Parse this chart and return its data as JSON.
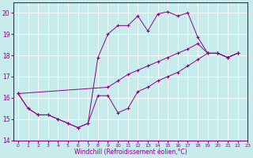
{
  "xlabel": "Windchill (Refroidissement éolien,°C)",
  "background_color": "#c8ecec",
  "line_color": "#8b008b",
  "xlim": [
    -0.5,
    23
  ],
  "ylim": [
    14,
    20.5
  ],
  "yticks": [
    14,
    15,
    16,
    17,
    18,
    19,
    20
  ],
  "xticks": [
    0,
    1,
    2,
    3,
    4,
    5,
    6,
    7,
    8,
    9,
    10,
    11,
    12,
    13,
    14,
    15,
    16,
    17,
    18,
    19,
    20,
    21,
    22,
    23
  ],
  "series1": [
    [
      0,
      16.2
    ],
    [
      1,
      15.5
    ],
    [
      2,
      15.2
    ],
    [
      3,
      15.2
    ],
    [
      4,
      15.0
    ],
    [
      5,
      14.8
    ],
    [
      6,
      14.6
    ],
    [
      7,
      14.8
    ],
    [
      8,
      16.1
    ],
    [
      9,
      16.1
    ],
    [
      10,
      15.3
    ],
    [
      11,
      15.5
    ],
    [
      12,
      16.3
    ],
    [
      13,
      16.5
    ],
    [
      14,
      16.8
    ],
    [
      15,
      17.0
    ],
    [
      16,
      17.2
    ],
    [
      17,
      17.5
    ],
    [
      18,
      17.8
    ],
    [
      19,
      18.1
    ],
    [
      20,
      18.1
    ],
    [
      21,
      17.9
    ],
    [
      22,
      18.1
    ]
  ],
  "series2": [
    [
      0,
      16.2
    ],
    [
      1,
      15.5
    ],
    [
      2,
      15.2
    ],
    [
      3,
      15.2
    ],
    [
      4,
      15.0
    ],
    [
      5,
      14.8
    ],
    [
      6,
      14.6
    ],
    [
      7,
      14.8
    ],
    [
      8,
      17.9
    ],
    [
      9,
      19.0
    ],
    [
      10,
      19.4
    ],
    [
      11,
      19.4
    ],
    [
      12,
      19.85
    ],
    [
      13,
      19.15
    ],
    [
      14,
      19.95
    ],
    [
      15,
      20.05
    ],
    [
      16,
      19.85
    ],
    [
      17,
      20.0
    ],
    [
      18,
      18.85
    ],
    [
      19,
      18.1
    ],
    [
      20,
      18.1
    ],
    [
      21,
      17.9
    ],
    [
      22,
      18.1
    ]
  ],
  "series3": [
    [
      0,
      16.2
    ],
    [
      9,
      16.5
    ],
    [
      10,
      16.8
    ],
    [
      11,
      17.1
    ],
    [
      12,
      17.3
    ],
    [
      13,
      17.5
    ],
    [
      14,
      17.7
    ],
    [
      15,
      17.9
    ],
    [
      16,
      18.1
    ],
    [
      17,
      18.3
    ],
    [
      18,
      18.55
    ],
    [
      19,
      18.1
    ],
    [
      20,
      18.1
    ],
    [
      21,
      17.9
    ],
    [
      22,
      18.1
    ]
  ]
}
